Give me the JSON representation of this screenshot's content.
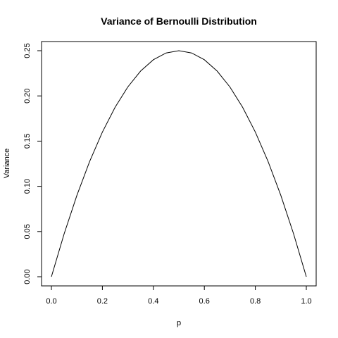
{
  "chart_data": {
    "type": "line",
    "title": "Variance of Bernoulli Distribution",
    "xlabel": "p",
    "ylabel": "Variance",
    "xlim": [
      0,
      1
    ],
    "ylim": [
      0,
      0.25
    ],
    "grid": false,
    "x_ticks": [
      "0.0",
      "0.2",
      "0.4",
      "0.6",
      "0.8",
      "1.0"
    ],
    "y_ticks": [
      "0.00",
      "0.05",
      "0.10",
      "0.15",
      "0.20",
      "0.25"
    ],
    "series": [
      {
        "x": [
          0,
          0.05,
          0.1,
          0.15,
          0.2,
          0.25,
          0.3,
          0.35,
          0.4,
          0.45,
          0.5,
          0.55,
          0.6,
          0.65,
          0.7,
          0.75,
          0.8,
          0.85,
          0.9,
          0.95,
          1.0
        ],
        "y": [
          0,
          0.0475,
          0.09,
          0.1275,
          0.16,
          0.1875,
          0.21,
          0.2275,
          0.24,
          0.2475,
          0.25,
          0.2475,
          0.24,
          0.2275,
          0.21,
          0.1875,
          0.16,
          0.1275,
          0.09,
          0.0475,
          0
        ]
      }
    ],
    "colors": {
      "line": "#000000",
      "frame": "#000000"
    }
  }
}
